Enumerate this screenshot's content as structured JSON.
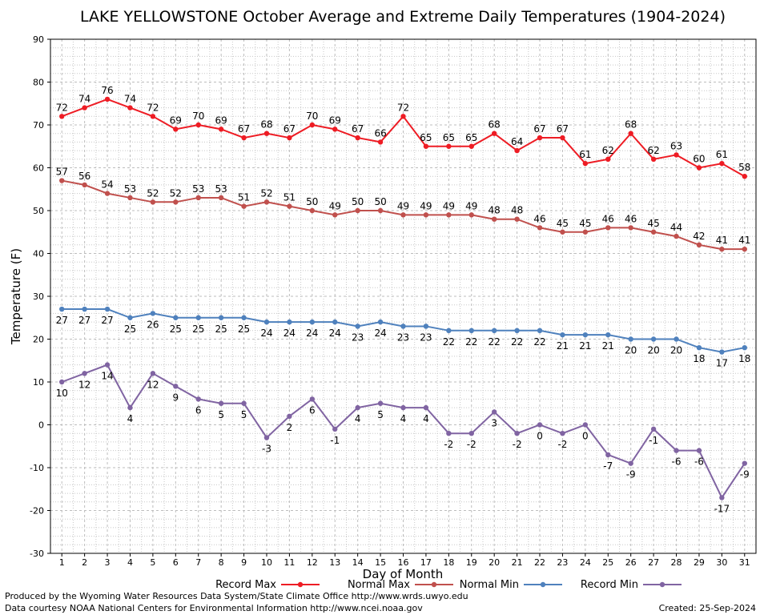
{
  "chart_data": {
    "type": "line",
    "title": "LAKE YELLOWSTONE October Average and Extreme Daily Temperatures (1904-2024)",
    "xlabel": "Day of Month",
    "ylabel": "Temperature (F)",
    "ylim": [
      -30,
      90
    ],
    "yticks": [
      -30,
      -20,
      -10,
      0,
      10,
      20,
      30,
      40,
      50,
      60,
      70,
      80,
      90
    ],
    "x": [
      1,
      2,
      3,
      4,
      5,
      6,
      7,
      8,
      9,
      10,
      11,
      12,
      13,
      14,
      15,
      16,
      17,
      18,
      19,
      20,
      21,
      22,
      23,
      24,
      25,
      26,
      27,
      28,
      29,
      30,
      31
    ],
    "grid": true,
    "legend_position": "bottom",
    "series": [
      {
        "name": "Record Max",
        "color": "#ee1c24",
        "values": [
          72,
          74,
          76,
          74,
          72,
          69,
          70,
          69,
          67,
          68,
          67,
          70,
          69,
          67,
          66,
          72,
          65,
          65,
          65,
          68,
          64,
          67,
          67,
          61,
          62,
          68,
          62,
          63,
          60,
          61,
          58
        ]
      },
      {
        "name": "Normal Max",
        "color": "#c0504d",
        "values": [
          57,
          56,
          54,
          53,
          52,
          52,
          53,
          53,
          51,
          52,
          51,
          50,
          49,
          50,
          50,
          49,
          49,
          49,
          49,
          48,
          48,
          46,
          45,
          45,
          46,
          46,
          45,
          44,
          42,
          41,
          41
        ]
      },
      {
        "name": "Normal Min",
        "color": "#4f81bd",
        "values": [
          27,
          27,
          27,
          25,
          26,
          25,
          25,
          25,
          25,
          24,
          24,
          24,
          24,
          23,
          24,
          23,
          23,
          22,
          22,
          22,
          22,
          22,
          21,
          21,
          21,
          20,
          20,
          20,
          18,
          17,
          18
        ]
      },
      {
        "name": "Record Min",
        "color": "#8064a2",
        "values": [
          10,
          12,
          14,
          4,
          12,
          9,
          6,
          5,
          5,
          -3,
          2,
          6,
          -1,
          4,
          5,
          4,
          4,
          -2,
          -2,
          3,
          -2,
          0,
          -2,
          0,
          -7,
          -9,
          -1,
          -6,
          -6,
          -17,
          -9
        ]
      }
    ]
  },
  "footer": {
    "line1": "Produced by the Wyoming Water Resources Data System/State Climate Office http://www.wrds.uwyo.edu",
    "line2": "Data courtesy NOAA National Centers for Environmental Information http://www.ncei.noaa.gov",
    "created": "Created:  25-Sep-2024"
  }
}
